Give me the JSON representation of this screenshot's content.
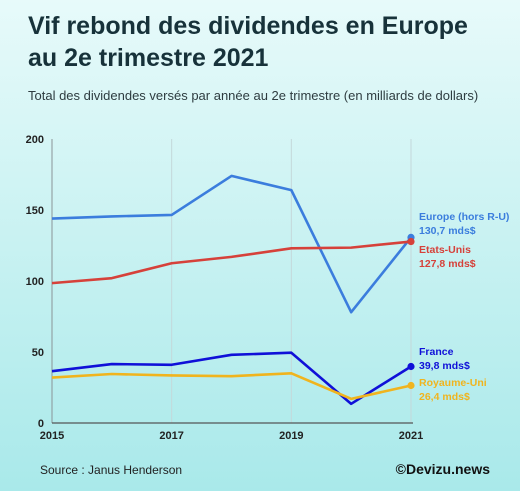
{
  "header": {
    "title_line1": "Vif rebond des dividendes en Europe",
    "title_line2": "au 2e trimestre 2021",
    "subtitle": "Total des dividendes versés par année au 2e trimestre (en milliards de dollars)"
  },
  "footer": {
    "source": "Source : Janus Henderson",
    "brand": "©Devizu.news"
  },
  "chart_data": {
    "type": "line",
    "title": "Vif rebond des dividendes en Europe au 2e trimestre 2021",
    "subtitle": "Total des dividendes versés par année au 2e trimestre (en milliards de dollars)",
    "x": [
      2015,
      2016,
      2017,
      2018,
      2019,
      2020,
      2021
    ],
    "x_tick_labels": [
      "2015",
      "2017",
      "2019",
      "2021"
    ],
    "x_ticks": [
      2015,
      2017,
      2019,
      2021
    ],
    "y_ticks": [
      0,
      50,
      100,
      150,
      200
    ],
    "y_tick_labels": [
      "0",
      "50",
      "100",
      "150",
      "200"
    ],
    "ylim": [
      0,
      200
    ],
    "grid": "vertical",
    "legend_placement": "right end labels",
    "series": [
      {
        "name": "Europe (hors R-U)",
        "value_label": "130,7 mds$",
        "color": "#3b7ddd",
        "values": [
          144,
          145.5,
          146.5,
          174,
          164,
          78,
          130.7
        ]
      },
      {
        "name": "Etats-Unis",
        "value_label": "127,8 mds$",
        "color": "#d6413a",
        "values": [
          98.5,
          102,
          112.5,
          117,
          123,
          123.5,
          127.8
        ]
      },
      {
        "name": "France",
        "value_label": "39,8 mds$",
        "color": "#1010d8",
        "values": [
          36.5,
          41.5,
          41,
          48,
          49.5,
          13.5,
          39.8
        ]
      },
      {
        "name": "Royaume-Uni",
        "value_label": "26,4 mds$",
        "color": "#f0b41e",
        "values": [
          32,
          34.5,
          33.5,
          33,
          35,
          17,
          26.4
        ]
      }
    ]
  }
}
